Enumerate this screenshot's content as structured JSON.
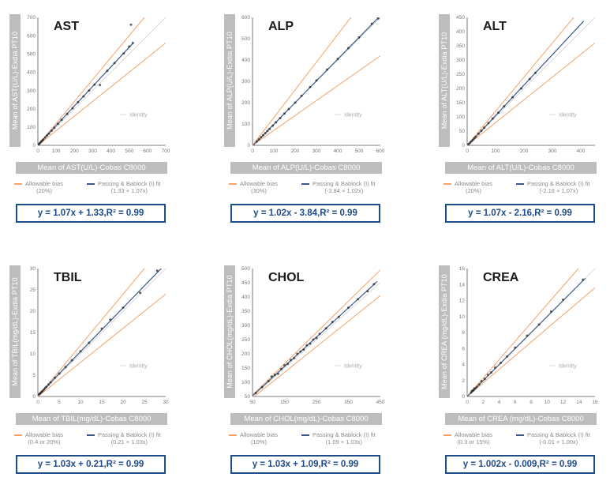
{
  "colors": {
    "allowable_bias": "#f3a36b",
    "passing_bablock": "#3c5a8c",
    "identity": "#d4d4d4",
    "points": "#2a2a2a",
    "equation": "#1e4c8a",
    "label_box": "#bdbdbd"
  },
  "legend": {
    "allowable_bias": "Allowable bias",
    "passing_bablock": "Passing & Bablock (I) fit",
    "identity": "Identity"
  },
  "chart_data": [
    {
      "type": "scatter",
      "title": "AST",
      "xlabel": "Mean of AST(U/L)-Cobas C8000",
      "ylabel": "Mean of AST(U/L)-Exdia PT10",
      "xlim": [
        0,
        700
      ],
      "ylim": [
        0,
        700
      ],
      "xticks": [
        0,
        100,
        200,
        300,
        400,
        500,
        600,
        700
      ],
      "yticks": [
        0,
        100,
        200,
        300,
        400,
        500,
        600,
        700
      ],
      "bias_text": "(20%)",
      "fit_text": "(1.33 + 1.07x)",
      "bias_upper": 1.2,
      "bias_lower": 0.8,
      "fit": {
        "slope": 1.07,
        "intercept": 1.33
      },
      "fit_range": [
        0,
        520
      ],
      "equation": "y = 1.07x + 1.33,R² = 0.99",
      "points": [
        [
          5,
          6
        ],
        [
          10,
          11
        ],
        [
          15,
          17
        ],
        [
          20,
          22
        ],
        [
          25,
          27
        ],
        [
          30,
          32
        ],
        [
          40,
          43
        ],
        [
          50,
          54
        ],
        [
          60,
          64
        ],
        [
          75,
          80
        ],
        [
          90,
          96
        ],
        [
          110,
          118
        ],
        [
          130,
          140
        ],
        [
          160,
          172
        ],
        [
          190,
          203
        ],
        [
          220,
          236
        ],
        [
          250,
          268
        ],
        [
          280,
          300
        ],
        [
          310,
          332
        ],
        [
          340,
          330
        ],
        [
          380,
          407
        ],
        [
          420,
          450
        ],
        [
          470,
          503
        ],
        [
          500,
          540
        ],
        [
          510,
          660
        ],
        [
          520,
          560
        ]
      ]
    },
    {
      "type": "scatter",
      "title": "ALP",
      "xlabel": "Mean of ALP(U/L)-Cobas C8000",
      "ylabel": "Mean of ALP(U/L)-Exdia PT10",
      "xlim": [
        0,
        600
      ],
      "ylim": [
        0,
        600
      ],
      "xticks": [
        0,
        100,
        200,
        300,
        400,
        500,
        600
      ],
      "yticks": [
        0,
        100,
        200,
        300,
        400,
        500,
        600
      ],
      "bias_text": "(30%)",
      "fit_text": "(-3.84 + 1.02x)",
      "bias_upper": 1.3,
      "bias_lower": 0.7,
      "fit": {
        "slope": 1.02,
        "intercept": -3.84
      },
      "fit_range": [
        0,
        590
      ],
      "equation": "y = 1.02x - 3.84,R² = 0.99",
      "points": [
        [
          20,
          18
        ],
        [
          30,
          28
        ],
        [
          40,
          38
        ],
        [
          50,
          47
        ],
        [
          60,
          57
        ],
        [
          70,
          67
        ],
        [
          80,
          77
        ],
        [
          95,
          92
        ],
        [
          110,
          108
        ],
        [
          130,
          128
        ],
        [
          150,
          149
        ],
        [
          170,
          170
        ],
        [
          200,
          200
        ],
        [
          230,
          232
        ],
        [
          270,
          273
        ],
        [
          300,
          304
        ],
        [
          350,
          355
        ],
        [
          400,
          405
        ],
        [
          450,
          456
        ],
        [
          500,
          506
        ],
        [
          560,
          570
        ],
        [
          590,
          595
        ]
      ]
    },
    {
      "type": "scatter",
      "title": "ALT",
      "xlabel": "Mean of ALT(U/L)-Cobas C8000",
      "ylabel": "Mean of ALT(U/L)-Exdia PT10",
      "xlim": [
        0,
        450
      ],
      "ylim": [
        0,
        450
      ],
      "xticks": [
        0,
        100,
        200,
        300,
        400
      ],
      "yticks": [
        0,
        50,
        100,
        150,
        200,
        250,
        300,
        350,
        400,
        450
      ],
      "bias_text": "(20%)",
      "fit_text": "(-2.16 + 1.07x)",
      "bias_upper": 1.2,
      "bias_lower": 0.8,
      "fit": {
        "slope": 1.07,
        "intercept": -2.16
      },
      "fit_range": [
        0,
        410
      ],
      "equation": "y = 1.07x - 2.16,R² = 0.99",
      "points": [
        [
          5,
          4
        ],
        [
          10,
          9
        ],
        [
          15,
          14
        ],
        [
          20,
          19
        ],
        [
          25,
          25
        ],
        [
          30,
          30
        ],
        [
          40,
          41
        ],
        [
          50,
          51
        ],
        [
          60,
          62
        ],
        [
          75,
          78
        ],
        [
          90,
          94
        ],
        [
          110,
          115
        ],
        [
          130,
          137
        ],
        [
          160,
          169
        ],
        [
          190,
          200
        ],
        [
          220,
          233
        ],
        [
          240,
          255
        ]
      ]
    },
    {
      "type": "scatter",
      "title": "TBIL",
      "xlabel": "Mean of TBIL(mg/dL)-Cobas C8000",
      "ylabel": "Mean of TBIL(mg/dL)-Exdia PT10",
      "xlim": [
        0,
        30
      ],
      "ylim": [
        0,
        30
      ],
      "xticks": [
        0,
        5,
        10,
        15,
        20,
        25,
        30
      ],
      "yticks": [
        0,
        5,
        10,
        15,
        20,
        25,
        30
      ],
      "bias_text": "(0.4 or 20%)",
      "fit_text": "(0.21 + 1.03x)",
      "bias_upper": 1.2,
      "bias_lower": 0.8,
      "fit": {
        "slope": 1.03,
        "intercept": 0.21
      },
      "fit_range": [
        0,
        29
      ],
      "equation": "y = 1.03x + 0.21,R² = 0.99",
      "points": [
        [
          0.3,
          0.5
        ],
        [
          0.5,
          0.7
        ],
        [
          0.7,
          0.9
        ],
        [
          0.9,
          1.1
        ],
        [
          1.1,
          1.3
        ],
        [
          1.4,
          1.6
        ],
        [
          1.7,
          2.0
        ],
        [
          2.0,
          2.3
        ],
        [
          2.5,
          2.8
        ],
        [
          3.0,
          3.3
        ],
        [
          4.0,
          4.4
        ],
        [
          5.0,
          5.4
        ],
        [
          6.5,
          6.9
        ],
        [
          8.0,
          8.5
        ],
        [
          10.0,
          10.6
        ],
        [
          12.0,
          12.6
        ],
        [
          15.0,
          15.9
        ],
        [
          17.0,
          18.0
        ],
        [
          20.0,
          20.8
        ],
        [
          24.0,
          24.3
        ],
        [
          28.0,
          29.5
        ]
      ]
    },
    {
      "type": "scatter",
      "title": "CHOL",
      "xlabel": "Mean of CHOL(mg/dL)-Cobas C8000",
      "ylabel": "Mean of CHOL(mg/dL)-Exdia PT10",
      "xlim": [
        50,
        450
      ],
      "ylim": [
        50,
        500
      ],
      "xticks": [
        50,
        150,
        250,
        350,
        450
      ],
      "yticks": [
        50,
        100,
        150,
        200,
        250,
        300,
        350,
        400,
        450,
        500
      ],
      "bias_text": "(10%)",
      "fit_text": "(1.09 + 1.03x)",
      "bias_upper": 1.1,
      "bias_lower": 0.9,
      "fit": {
        "slope": 1.03,
        "intercept": 1.09
      },
      "fit_range": [
        50,
        440
      ],
      "equation": "y = 1.03x + 1.09,R² = 0.99",
      "points": [
        [
          60,
          62
        ],
        [
          80,
          83
        ],
        [
          100,
          104
        ],
        [
          110,
          120
        ],
        [
          120,
          126
        ],
        [
          130,
          130
        ],
        [
          140,
          147
        ],
        [
          150,
          160
        ],
        [
          160,
          165
        ],
        [
          170,
          178
        ],
        [
          180,
          185
        ],
        [
          190,
          200
        ],
        [
          200,
          208
        ],
        [
          210,
          215
        ],
        [
          220,
          230
        ],
        [
          230,
          236
        ],
        [
          240,
          250
        ],
        [
          250,
          256
        ],
        [
          260,
          270
        ],
        [
          280,
          290
        ],
        [
          300,
          312
        ],
        [
          320,
          330
        ],
        [
          350,
          362
        ],
        [
          380,
          392
        ],
        [
          410,
          420
        ],
        [
          430,
          445
        ]
      ]
    },
    {
      "type": "scatter",
      "title": "CREA",
      "xlabel": "Mean of CREA (mg/dL)-Cobas C8000",
      "ylabel": "Mean of CREA (mg/dL)-Exdia PT10",
      "xlim": [
        0,
        16
      ],
      "ylim": [
        0,
        16
      ],
      "xticks": [
        0,
        2,
        4,
        6,
        8,
        10,
        12,
        14,
        16
      ],
      "yticks": [
        0,
        2,
        4,
        6,
        8,
        10,
        12,
        14,
        16
      ],
      "bias_text": "(0.3 or 15%)",
      "fit_text": "(-0.01 + 1.00x)",
      "bias_upper": 1.15,
      "bias_lower": 0.85,
      "fit": {
        "slope": 1.0,
        "intercept": -0.01
      },
      "fit_range": [
        0,
        14.8
      ],
      "equation": "y = 1.002x - 0.009,R² = 0.99",
      "points": [
        [
          0.5,
          0.5
        ],
        [
          0.6,
          0.7
        ],
        [
          0.7,
          0.7
        ],
        [
          0.8,
          0.8
        ],
        [
          0.9,
          1.0
        ],
        [
          1.0,
          1.0
        ],
        [
          1.2,
          1.2
        ],
        [
          1.5,
          1.5
        ],
        [
          1.8,
          1.9
        ],
        [
          2.2,
          2.2
        ],
        [
          2.6,
          2.7
        ],
        [
          3.0,
          3.0
        ],
        [
          3.5,
          3.6
        ],
        [
          4.2,
          4.2
        ],
        [
          5.0,
          5.0
        ],
        [
          6.0,
          6.1
        ],
        [
          7.5,
          7.6
        ],
        [
          9.0,
          9.0
        ],
        [
          10.5,
          10.6
        ],
        [
          12.0,
          12.1
        ],
        [
          14.5,
          14.6
        ]
      ]
    }
  ]
}
